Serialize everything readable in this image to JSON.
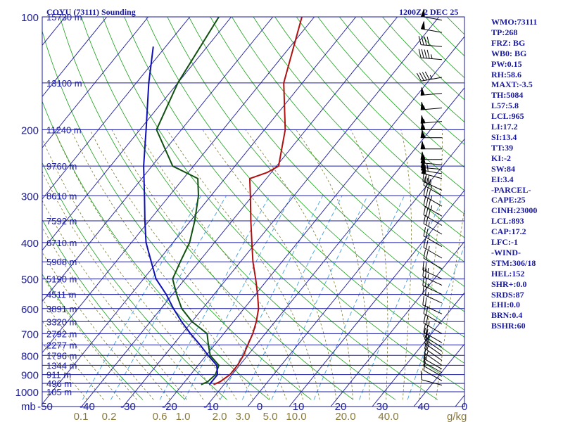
{
  "header": {
    "station": "COYU (73111) Sounding",
    "time": "1200Z  2 DEC 25"
  },
  "indices": [
    "WMO:73111",
    "TP:268",
    "FRZ: BG",
    "WB0: BG",
    "PW:0.15",
    "RH:58.6",
    "MAXT:-3.5",
    "TH:5084",
    "L57:5.8",
    "LCL:965",
    "LI:17.2",
    "SI:13.4",
    "TT:39",
    "KI:-2",
    "SW:84",
    "EI:3.4",
    "-PARCEL-",
    "CAPE:25",
    "CINH:23000",
    "LCL:893",
    "CAP:17.2",
    "LFC:-1",
    "-WIND-",
    "STM:306/18",
    "HEL:152",
    "SHR+:0.0",
    "SRDS:87",
    "EHI:0.0",
    "BRN:0.4",
    "BSHR:60"
  ],
  "colors": {
    "frame": "#1a1aa0",
    "isobar": "#1a1aa0",
    "isotherm": "#1a1aa0",
    "dry_adiabat": "#1aa01a",
    "moist_adiabat": "#7a7a30",
    "mixing_ratio": "#40a0e0",
    "temperature": "#b01010",
    "dewpoint": "#105010",
    "wetbulb": "#1010b0",
    "barb": "#000000"
  },
  "chart_data": {
    "type": "line",
    "title": "COYU (73111) Sounding",
    "x_unit_label": "mb",
    "y_scale": "log",
    "pressure_range_hPa": [
      1000,
      100
    ],
    "grid": true,
    "pressure_labels": [
      "100",
      "200",
      "300",
      "400",
      "500",
      "600",
      "700",
      "800",
      "900",
      "1000"
    ],
    "pressure_levels": [
      100,
      200,
      300,
      400,
      500,
      600,
      700,
      800,
      900,
      1000
    ],
    "height_labels": [
      {
        "p": 100,
        "label": "15730 m"
      },
      {
        "p": 150,
        "label": "13100 m"
      },
      {
        "p": 200,
        "label": "11240 m"
      },
      {
        "p": 250,
        "label": "9760 m"
      },
      {
        "p": 300,
        "label": "8610 m"
      },
      {
        "p": 350,
        "label": "7592 m"
      },
      {
        "p": 400,
        "label": "6710 m"
      },
      {
        "p": 450,
        "label": "5908 m"
      },
      {
        "p": 500,
        "label": "5190 m"
      },
      {
        "p": 550,
        "label": "4511 m"
      },
      {
        "p": 600,
        "label": "3891 m"
      },
      {
        "p": 650,
        "label": "3320 m"
      },
      {
        "p": 700,
        "label": "2792 m"
      },
      {
        "p": 750,
        "label": "2277 m"
      },
      {
        "p": 800,
        "label": "1796 m"
      },
      {
        "p": 850,
        "label": "1344 m"
      },
      {
        "p": 900,
        "label": "911 m"
      },
      {
        "p": 950,
        "label": "496 m"
      },
      {
        "p": 1000,
        "label": "105 m"
      }
    ],
    "temperature_ticks": [
      -50,
      -40,
      -30,
      -20,
      -10,
      0,
      10,
      20,
      30,
      40,
      0
    ],
    "temperature_tick_labels": [
      "-50",
      "-40",
      "-30",
      "-20",
      "-10",
      "0",
      "10",
      "20",
      "30",
      "40",
      "0"
    ],
    "mixing_ratio_labels": [
      "0.1",
      "0.2",
      "0.6",
      "1.0",
      "2.0",
      "3.0",
      "5.0",
      "10.0",
      "20.0",
      "40.0"
    ],
    "mixing_ratio_unit": "g/kg",
    "series": [
      {
        "key": "temperature",
        "points": [
          [
            957,
            -12.5
          ],
          [
            940,
            -11.5
          ],
          [
            900,
            -10.5
          ],
          [
            850,
            -10.5
          ],
          [
            800,
            -11
          ],
          [
            750,
            -12
          ],
          [
            700,
            -13
          ],
          [
            650,
            -14.5
          ],
          [
            600,
            -16.5
          ],
          [
            550,
            -19.5
          ],
          [
            500,
            -23
          ],
          [
            450,
            -27
          ],
          [
            400,
            -31
          ],
          [
            350,
            -35.5
          ],
          [
            300,
            -40.5
          ],
          [
            270,
            -44
          ],
          [
            260,
            -41
          ],
          [
            250,
            -39.5
          ],
          [
            200,
            -45
          ],
          [
            150,
            -54.5
          ],
          [
            100,
            -63
          ]
        ]
      },
      {
        "key": "dewpoint",
        "points": [
          [
            957,
            -15.5
          ],
          [
            940,
            -14.5
          ],
          [
            900,
            -14
          ],
          [
            850,
            -15
          ],
          [
            800,
            -19
          ],
          [
            750,
            -21.5
          ],
          [
            700,
            -24
          ],
          [
            650,
            -30
          ],
          [
            600,
            -35
          ],
          [
            550,
            -39
          ],
          [
            500,
            -43
          ],
          [
            450,
            -44.5
          ],
          [
            400,
            -46
          ],
          [
            350,
            -49
          ],
          [
            300,
            -53
          ],
          [
            270,
            -56.5
          ],
          [
            250,
            -65
          ],
          [
            200,
            -76
          ],
          [
            150,
            -80
          ],
          [
            100,
            -83
          ]
        ]
      },
      {
        "key": "wetbulb",
        "points": [
          [
            957,
            -13.5
          ],
          [
            900,
            -13.5
          ],
          [
            850,
            -15.5
          ],
          [
            800,
            -19.5
          ],
          [
            750,
            -23.5
          ],
          [
            700,
            -28
          ],
          [
            650,
            -32.5
          ],
          [
            600,
            -37
          ],
          [
            550,
            -41.5
          ],
          [
            500,
            -47
          ],
          [
            450,
            -51.5
          ],
          [
            400,
            -56.5
          ],
          [
            350,
            -61
          ],
          [
            300,
            -66
          ],
          [
            250,
            -72
          ],
          [
            200,
            -78.5
          ],
          [
            150,
            -87
          ],
          [
            120,
            -93
          ]
        ]
      }
    ],
    "wind_barbs": [
      {
        "p": 960,
        "dir": 285,
        "kt": 8
      },
      {
        "p": 935,
        "dir": 300,
        "kt": 10
      },
      {
        "p": 910,
        "dir": 300,
        "kt": 10
      },
      {
        "p": 890,
        "dir": 300,
        "kt": 10
      },
      {
        "p": 870,
        "dir": 300,
        "kt": 15
      },
      {
        "p": 850,
        "dir": 305,
        "kt": 15
      },
      {
        "p": 825,
        "dir": 305,
        "kt": 20
      },
      {
        "p": 800,
        "dir": 305,
        "kt": 20
      },
      {
        "p": 780,
        "dir": 305,
        "kt": 20
      },
      {
        "p": 760,
        "dir": 300,
        "kt": 20
      },
      {
        "p": 740,
        "dir": 300,
        "kt": 20
      },
      {
        "p": 700,
        "dir": 300,
        "kt": 25
      },
      {
        "p": 660,
        "dir": 300,
        "kt": 20
      },
      {
        "p": 620,
        "dir": 295,
        "kt": 20
      },
      {
        "p": 580,
        "dir": 295,
        "kt": 25
      },
      {
        "p": 550,
        "dir": 295,
        "kt": 25
      },
      {
        "p": 520,
        "dir": 295,
        "kt": 25
      },
      {
        "p": 500,
        "dir": 295,
        "kt": 25
      },
      {
        "p": 470,
        "dir": 300,
        "kt": 20
      },
      {
        "p": 440,
        "dir": 300,
        "kt": 25
      },
      {
        "p": 410,
        "dir": 300,
        "kt": 25
      },
      {
        "p": 380,
        "dir": 300,
        "kt": 25
      },
      {
        "p": 360,
        "dir": 300,
        "kt": 30
      },
      {
        "p": 340,
        "dir": 300,
        "kt": 35
      },
      {
        "p": 320,
        "dir": 300,
        "kt": 35
      },
      {
        "p": 300,
        "dir": 300,
        "kt": 35
      },
      {
        "p": 290,
        "dir": 295,
        "kt": 35
      },
      {
        "p": 270,
        "dir": 285,
        "kt": 60
      },
      {
        "p": 262,
        "dir": 280,
        "kt": 65
      },
      {
        "p": 255,
        "dir": 275,
        "kt": 65
      },
      {
        "p": 248,
        "dir": 275,
        "kt": 60
      },
      {
        "p": 240,
        "dir": 270,
        "kt": 55
      },
      {
        "p": 225,
        "dir": 270,
        "kt": 55
      },
      {
        "p": 210,
        "dir": 270,
        "kt": 55
      },
      {
        "p": 200,
        "dir": 270,
        "kt": 55
      },
      {
        "p": 190,
        "dir": 265,
        "kt": 55
      },
      {
        "p": 175,
        "dir": 265,
        "kt": 55
      },
      {
        "p": 160,
        "dir": 265,
        "kt": 50
      },
      {
        "p": 145,
        "dir": 260,
        "kt": 45
      },
      {
        "p": 130,
        "dir": 275,
        "kt": 45
      },
      {
        "p": 120,
        "dir": 275,
        "kt": 40
      },
      {
        "p": 110,
        "dir": 280,
        "kt": 50
      },
      {
        "p": 102,
        "dir": 280,
        "kt": 50
      }
    ]
  }
}
